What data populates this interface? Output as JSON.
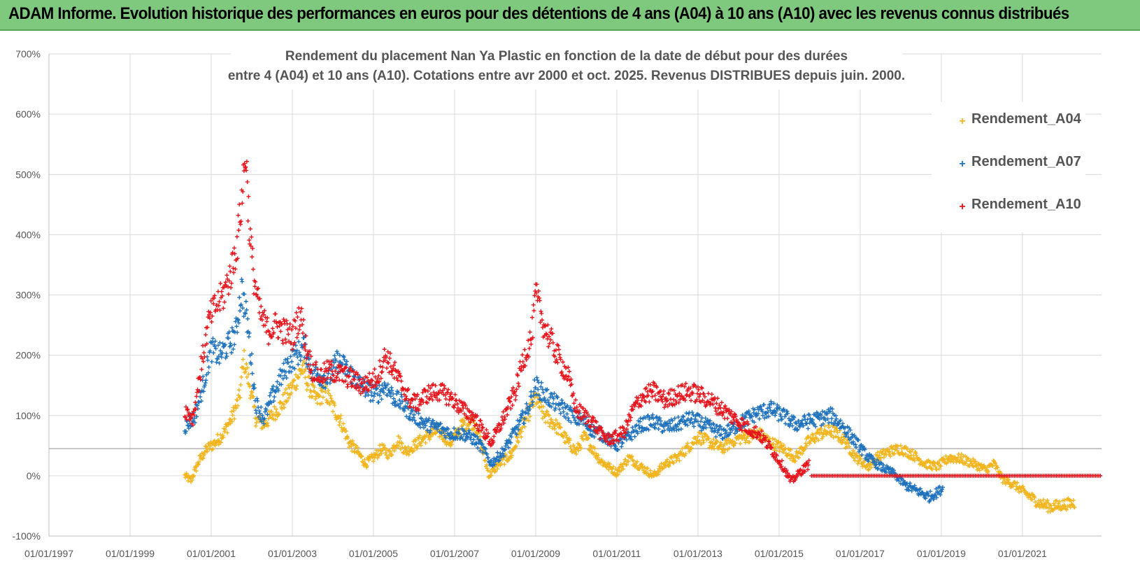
{
  "banner": {
    "title": "ADAM Informe. Evolution historique des performances en euros pour des détentions de 4 ans (A04) à 10 ans (A10) avec les revenus connus distribués"
  },
  "colors": {
    "a04": "#f2b51e",
    "a07": "#1f72bd",
    "a10": "#e8141c",
    "grid": "#d9d9d9",
    "axis": "#bfbfbf",
    "banner": "#7fc97f"
  },
  "chart_data": {
    "type": "scatter",
    "title_lines": [
      "Rendement du placement Nan Ya Plastic  en fonction de la date de début pour des durées",
      "entre 4 (A04) et 10 ans (A10). Cotations entre avr 2000 et oct. 2025. Revenus DISTRIBUES depuis juin. 2000."
    ],
    "x_labels": [
      "01/01/1997",
      "01/01/1999",
      "01/01/2001",
      "01/01/2003",
      "01/01/2005",
      "01/01/2007",
      "01/01/2009",
      "01/01/2011",
      "01/01/2013",
      "01/01/2015",
      "01/01/2017",
      "01/01/2019",
      "01/01/2021"
    ],
    "x_range": [
      1997.0,
      2022.95
    ],
    "y_labels": [
      "700%",
      "600%",
      "500%",
      "400%",
      "300%",
      "200%",
      "100%",
      "0%",
      "-100%"
    ],
    "y_range": [
      -100,
      700
    ],
    "reference_line": 45,
    "legend": [
      "Rendement_A04",
      "Rendement_A07",
      "Rendement_A10"
    ],
    "series": [
      {
        "name": "Rendement_A04",
        "points": [
          [
            2000.35,
            0
          ],
          [
            2000.5,
            -8
          ],
          [
            2000.7,
            25
          ],
          [
            2000.9,
            45
          ],
          [
            2001.1,
            55
          ],
          [
            2001.3,
            70
          ],
          [
            2001.5,
            95
          ],
          [
            2001.7,
            130
          ],
          [
            2001.8,
            195
          ],
          [
            2001.95,
            150
          ],
          [
            2002.1,
            95
          ],
          [
            2002.3,
            85
          ],
          [
            2002.5,
            100
          ],
          [
            2002.7,
            115
          ],
          [
            2002.9,
            135
          ],
          [
            2003.1,
            160
          ],
          [
            2003.25,
            180
          ],
          [
            2003.4,
            150
          ],
          [
            2003.6,
            125
          ],
          [
            2003.8,
            140
          ],
          [
            2004.0,
            115
          ],
          [
            2004.2,
            90
          ],
          [
            2004.4,
            55
          ],
          [
            2004.6,
            40
          ],
          [
            2004.8,
            20
          ],
          [
            2005.0,
            30
          ],
          [
            2005.2,
            45
          ],
          [
            2005.4,
            35
          ],
          [
            2005.6,
            60
          ],
          [
            2005.8,
            40
          ],
          [
            2006.0,
            50
          ],
          [
            2006.3,
            65
          ],
          [
            2006.6,
            75
          ],
          [
            2006.9,
            55
          ],
          [
            2007.2,
            85
          ],
          [
            2007.5,
            90
          ],
          [
            2007.7,
            40
          ],
          [
            2007.85,
            0
          ],
          [
            2008.1,
            20
          ],
          [
            2008.4,
            35
          ],
          [
            2008.7,
            85
          ],
          [
            2009.0,
            130
          ],
          [
            2009.2,
            100
          ],
          [
            2009.4,
            90
          ],
          [
            2009.6,
            75
          ],
          [
            2009.8,
            55
          ],
          [
            2010.0,
            40
          ],
          [
            2010.2,
            65
          ],
          [
            2010.4,
            45
          ],
          [
            2010.6,
            25
          ],
          [
            2010.8,
            15
          ],
          [
            2011.0,
            5
          ],
          [
            2011.3,
            30
          ],
          [
            2011.6,
            15
          ],
          [
            2011.9,
            0
          ],
          [
            2012.2,
            20
          ],
          [
            2012.5,
            30
          ],
          [
            2012.8,
            50
          ],
          [
            2013.0,
            65
          ],
          [
            2013.3,
            55
          ],
          [
            2013.6,
            45
          ],
          [
            2013.9,
            60
          ],
          [
            2014.2,
            65
          ],
          [
            2014.5,
            70
          ],
          [
            2014.8,
            55
          ],
          [
            2015.1,
            45
          ],
          [
            2015.4,
            30
          ],
          [
            2015.7,
            55
          ],
          [
            2016.0,
            70
          ],
          [
            2016.3,
            75
          ],
          [
            2016.6,
            60
          ],
          [
            2016.9,
            30
          ],
          [
            2017.2,
            15
          ],
          [
            2017.4,
            30
          ],
          [
            2017.7,
            40
          ],
          [
            2018.0,
            45
          ],
          [
            2018.3,
            35
          ],
          [
            2018.6,
            20
          ],
          [
            2018.9,
            15
          ],
          [
            2019.2,
            30
          ],
          [
            2019.5,
            28
          ],
          [
            2019.8,
            20
          ],
          [
            2020.1,
            10
          ],
          [
            2020.3,
            20
          ],
          [
            2020.5,
            -5
          ],
          [
            2020.8,
            -15
          ],
          [
            2021.1,
            -30
          ],
          [
            2021.4,
            -45
          ],
          [
            2021.7,
            -52
          ],
          [
            2022.0,
            -48
          ],
          [
            2022.3,
            -45
          ]
        ]
      },
      {
        "name": "Rendement_A07",
        "points": [
          [
            2000.35,
            80
          ],
          [
            2000.6,
            100
          ],
          [
            2000.8,
            150
          ],
          [
            2001.0,
            210
          ],
          [
            2001.2,
            200
          ],
          [
            2001.4,
            215
          ],
          [
            2001.6,
            235
          ],
          [
            2001.75,
            310
          ],
          [
            2001.9,
            250
          ],
          [
            2002.1,
            120
          ],
          [
            2002.3,
            95
          ],
          [
            2002.5,
            130
          ],
          [
            2002.7,
            160
          ],
          [
            2002.9,
            185
          ],
          [
            2003.1,
            200
          ],
          [
            2003.3,
            215
          ],
          [
            2003.5,
            170
          ],
          [
            2003.7,
            165
          ],
          [
            2003.9,
            160
          ],
          [
            2004.1,
            190
          ],
          [
            2004.3,
            180
          ],
          [
            2004.5,
            165
          ],
          [
            2004.7,
            150
          ],
          [
            2004.9,
            140
          ],
          [
            2005.1,
            135
          ],
          [
            2005.3,
            150
          ],
          [
            2005.5,
            130
          ],
          [
            2005.7,
            120
          ],
          [
            2005.9,
            105
          ],
          [
            2006.1,
            95
          ],
          [
            2006.3,
            85
          ],
          [
            2006.6,
            80
          ],
          [
            2006.9,
            70
          ],
          [
            2007.2,
            70
          ],
          [
            2007.5,
            60
          ],
          [
            2007.7,
            45
          ],
          [
            2007.9,
            20
          ],
          [
            2008.2,
            40
          ],
          [
            2008.5,
            75
          ],
          [
            2008.8,
            110
          ],
          [
            2009.0,
            150
          ],
          [
            2009.2,
            135
          ],
          [
            2009.4,
            125
          ],
          [
            2009.6,
            115
          ],
          [
            2009.8,
            105
          ],
          [
            2010.0,
            95
          ],
          [
            2010.2,
            90
          ],
          [
            2010.4,
            75
          ],
          [
            2010.6,
            70
          ],
          [
            2010.8,
            60
          ],
          [
            2011.0,
            50
          ],
          [
            2011.3,
            65
          ],
          [
            2011.6,
            85
          ],
          [
            2011.9,
            90
          ],
          [
            2012.2,
            80
          ],
          [
            2012.5,
            85
          ],
          [
            2012.8,
            95
          ],
          [
            2013.0,
            90
          ],
          [
            2013.3,
            80
          ],
          [
            2013.6,
            70
          ],
          [
            2013.9,
            80
          ],
          [
            2014.2,
            95
          ],
          [
            2014.5,
            105
          ],
          [
            2014.8,
            110
          ],
          [
            2015.1,
            100
          ],
          [
            2015.4,
            85
          ],
          [
            2015.7,
            90
          ],
          [
            2016.0,
            95
          ],
          [
            2016.3,
            100
          ],
          [
            2016.6,
            80
          ],
          [
            2016.9,
            55
          ],
          [
            2017.2,
            30
          ],
          [
            2017.5,
            15
          ],
          [
            2017.8,
            5
          ],
          [
            2018.1,
            -15
          ],
          [
            2018.4,
            -25
          ],
          [
            2018.7,
            -35
          ],
          [
            2018.9,
            -28
          ],
          [
            2019.05,
            -20
          ]
        ]
      },
      {
        "name": "Rendement_A10",
        "points": [
          [
            2000.35,
            110
          ],
          [
            2000.55,
            95
          ],
          [
            2000.75,
            180
          ],
          [
            2000.95,
            260
          ],
          [
            2001.1,
            280
          ],
          [
            2001.3,
            300
          ],
          [
            2001.5,
            340
          ],
          [
            2001.65,
            390
          ],
          [
            2001.78,
            480
          ],
          [
            2001.85,
            540
          ],
          [
            2001.95,
            400
          ],
          [
            2002.05,
            330
          ],
          [
            2002.2,
            270
          ],
          [
            2002.4,
            240
          ],
          [
            2002.6,
            250
          ],
          [
            2002.8,
            240
          ],
          [
            2003.0,
            230
          ],
          [
            2003.2,
            270
          ],
          [
            2003.35,
            210
          ],
          [
            2003.5,
            175
          ],
          [
            2003.7,
            165
          ],
          [
            2003.9,
            175
          ],
          [
            2004.1,
            170
          ],
          [
            2004.3,
            165
          ],
          [
            2004.5,
            160
          ],
          [
            2004.7,
            150
          ],
          [
            2004.9,
            155
          ],
          [
            2005.1,
            165
          ],
          [
            2005.3,
            200
          ],
          [
            2005.5,
            175
          ],
          [
            2005.7,
            150
          ],
          [
            2005.9,
            125
          ],
          [
            2006.1,
            120
          ],
          [
            2006.3,
            135
          ],
          [
            2006.6,
            140
          ],
          [
            2006.9,
            130
          ],
          [
            2007.2,
            110
          ],
          [
            2007.5,
            95
          ],
          [
            2007.7,
            75
          ],
          [
            2007.9,
            55
          ],
          [
            2008.1,
            80
          ],
          [
            2008.3,
            110
          ],
          [
            2008.5,
            140
          ],
          [
            2008.7,
            195
          ],
          [
            2008.9,
            230
          ],
          [
            2009.0,
            300
          ],
          [
            2009.2,
            250
          ],
          [
            2009.4,
            220
          ],
          [
            2009.6,
            190
          ],
          [
            2009.8,
            165
          ],
          [
            2010.0,
            110
          ],
          [
            2010.2,
            100
          ],
          [
            2010.4,
            90
          ],
          [
            2010.6,
            70
          ],
          [
            2010.8,
            60
          ],
          [
            2011.0,
            65
          ],
          [
            2011.2,
            75
          ],
          [
            2011.4,
            110
          ],
          [
            2011.6,
            130
          ],
          [
            2011.9,
            140
          ],
          [
            2012.2,
            125
          ],
          [
            2012.5,
            135
          ],
          [
            2012.8,
            140
          ],
          [
            2013.0,
            135
          ],
          [
            2013.3,
            125
          ],
          [
            2013.6,
            110
          ],
          [
            2013.9,
            95
          ],
          [
            2014.2,
            80
          ],
          [
            2014.5,
            70
          ],
          [
            2014.8,
            45
          ],
          [
            2015.1,
            15
          ],
          [
            2015.3,
            -10
          ],
          [
            2015.5,
            5
          ],
          [
            2015.75,
            20
          ]
        ]
      }
    ],
    "zero_line_a10": {
      "from": 2015.8,
      "to": 2022.95,
      "value": 0
    }
  }
}
